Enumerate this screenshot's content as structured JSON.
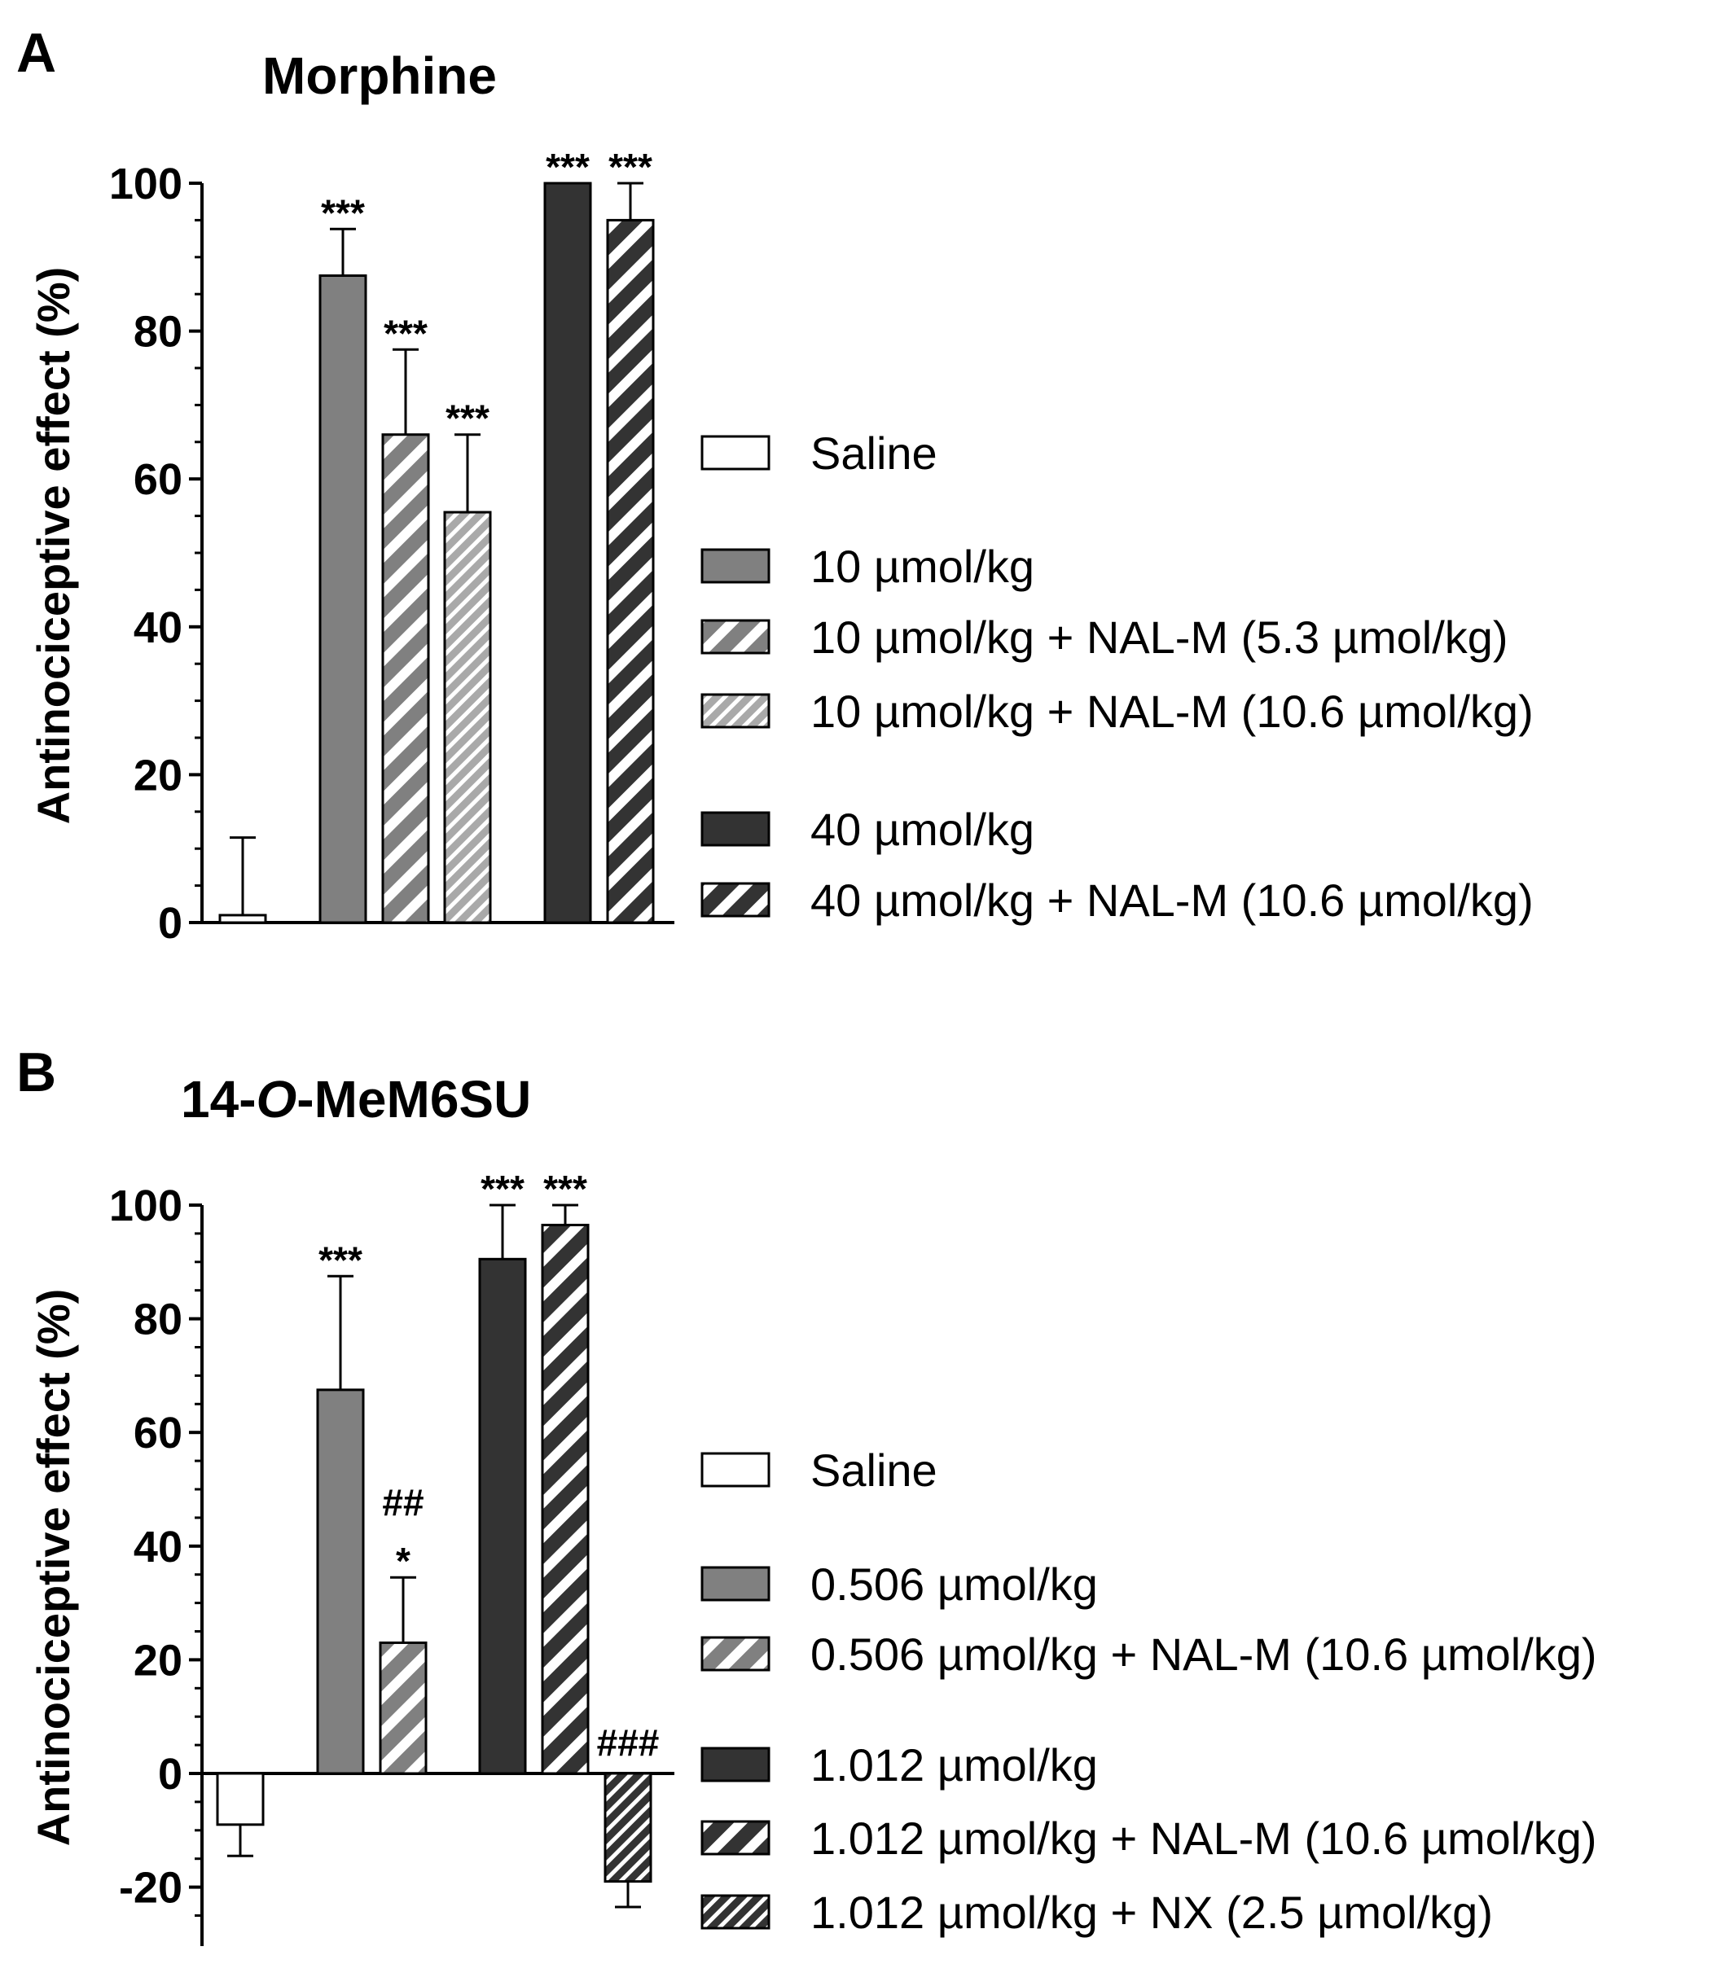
{
  "colors": {
    "white": "#ffffff",
    "mid_gray": "#808080",
    "light_gray": "#a9a9a9",
    "dark": "#333333",
    "black": "#000000"
  },
  "chart_data": [
    {
      "type": "bar",
      "panel_letter": "A",
      "title": "Morphine",
      "ylabel": "Antinociceptive effect (%)",
      "xlabel": "",
      "ylim": [
        0,
        100
      ],
      "yticks": [
        "0",
        "20",
        "40",
        "60",
        "80",
        "100"
      ],
      "series": [
        {
          "name": "Saline",
          "value": 1,
          "error": 10.5,
          "annotation": [],
          "fill": "#ffffff",
          "pattern": "solid"
        },
        {
          "name": "10 µmol/kg",
          "value": 87.5,
          "error": 6.3,
          "annotation": [
            "***"
          ],
          "fill": "#808080",
          "pattern": "solid"
        },
        {
          "name": "10 µmol/kg + NAL-M (5.3 µmol/kg)",
          "value": 66,
          "error": 11.5,
          "annotation": [
            "***"
          ],
          "fill": "#808080",
          "pattern": "stripe-wide"
        },
        {
          "name": "10 µmol/kg + NAL-M (10.6 µmol/kg)",
          "value": 55.5,
          "error": 10.5,
          "annotation": [
            "***"
          ],
          "fill": "#a9a9a9",
          "pattern": "stripe-fine"
        },
        {
          "name": "40 µmol/kg",
          "value": 100,
          "error": 0,
          "annotation": [
            "***"
          ],
          "fill": "#333333",
          "pattern": "solid"
        },
        {
          "name": "40 µmol/kg + NAL-M (10.6 µmol/kg)",
          "value": 95,
          "error": 5,
          "annotation": [
            "***"
          ],
          "fill": "#333333",
          "pattern": "stripe-wide"
        }
      ],
      "legend_position": "right"
    },
    {
      "type": "bar",
      "panel_letter": "B",
      "title_parts": [
        "14-",
        "O",
        "-MeM6SU"
      ],
      "ylabel": "Antinociceptive effect (%)",
      "xlabel": "",
      "ylim": [
        -25,
        100
      ],
      "yticks": [
        "-20",
        "0",
        "20",
        "40",
        "60",
        "80",
        "100"
      ],
      "series": [
        {
          "name": "Saline",
          "value": -9,
          "error": 5.5,
          "annotation": [],
          "fill": "#ffffff",
          "pattern": "solid"
        },
        {
          "name": "0.506 µmol/kg",
          "value": 67.5,
          "error": 20,
          "annotation": [
            "***"
          ],
          "fill": "#808080",
          "pattern": "solid"
        },
        {
          "name": "0.506 µmol/kg + NAL-M (10.6 µmol/kg)",
          "value": 23,
          "error": 11.5,
          "annotation": [
            "##",
            "*"
          ],
          "fill": "#808080",
          "pattern": "stripe-wide"
        },
        {
          "name": "1.012 µmol/kg",
          "value": 90.5,
          "error": 9.5,
          "annotation": [
            "***"
          ],
          "fill": "#333333",
          "pattern": "solid"
        },
        {
          "name": "1.012 µmol/kg + NAL-M (10.6 µmol/kg)",
          "value": 96.5,
          "error": 3.5,
          "annotation": [
            "***"
          ],
          "fill": "#333333",
          "pattern": "stripe-wide"
        },
        {
          "name": "1.012 µmol/kg + NX (2.5 µmol/kg)",
          "value": -19,
          "error": 4.5,
          "annotation": [
            "###"
          ],
          "fill": "#333333",
          "pattern": "stripe-fine"
        }
      ],
      "legend_position": "right"
    }
  ]
}
